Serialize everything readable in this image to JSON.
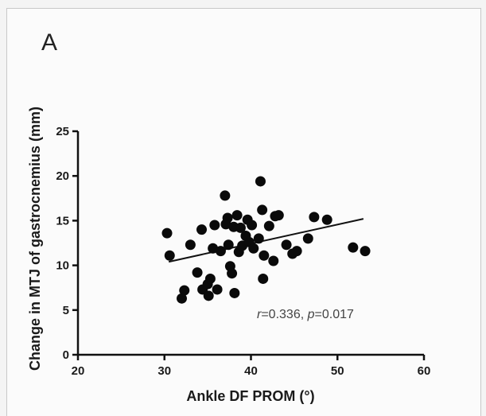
{
  "panel_label": "A",
  "chart_data": {
    "type": "scatter",
    "xlabel": "Ankle DF PROM (°)",
    "ylabel": "Change in MTJ of gastrocnemius (mm)",
    "xlim": [
      20,
      60
    ],
    "ylim": [
      0,
      25
    ],
    "xticks": [
      "20",
      "30",
      "40",
      "50",
      "60"
    ],
    "yticks": [
      "0",
      "5",
      "10",
      "15",
      "20",
      "25"
    ],
    "grid": false,
    "annotation": {
      "r_label": "r",
      "r_value": "=0.336, ",
      "p_label": "p",
      "p_value": "=0.017"
    },
    "regression_line": {
      "x": [
        30.5,
        53
      ],
      "y": [
        10.4,
        15.2
      ]
    },
    "points": [
      {
        "x": 30.3,
        "y": 13.6
      },
      {
        "x": 30.6,
        "y": 11.1
      },
      {
        "x": 32.0,
        "y": 6.3
      },
      {
        "x": 32.3,
        "y": 7.2
      },
      {
        "x": 33.0,
        "y": 12.3
      },
      {
        "x": 33.8,
        "y": 9.2
      },
      {
        "x": 34.3,
        "y": 14.0
      },
      {
        "x": 34.4,
        "y": 7.3
      },
      {
        "x": 35.0,
        "y": 7.9
      },
      {
        "x": 35.1,
        "y": 6.6
      },
      {
        "x": 35.3,
        "y": 8.5
      },
      {
        "x": 35.6,
        "y": 11.9
      },
      {
        "x": 35.8,
        "y": 14.5
      },
      {
        "x": 36.1,
        "y": 7.3
      },
      {
        "x": 36.5,
        "y": 11.6
      },
      {
        "x": 37.0,
        "y": 17.8
      },
      {
        "x": 37.1,
        "y": 14.6
      },
      {
        "x": 37.3,
        "y": 15.3
      },
      {
        "x": 37.4,
        "y": 12.3
      },
      {
        "x": 37.6,
        "y": 9.9
      },
      {
        "x": 37.8,
        "y": 9.1
      },
      {
        "x": 38.0,
        "y": 14.3
      },
      {
        "x": 38.1,
        "y": 6.9
      },
      {
        "x": 38.4,
        "y": 15.6
      },
      {
        "x": 38.6,
        "y": 11.5
      },
      {
        "x": 38.8,
        "y": 14.2
      },
      {
        "x": 39.0,
        "y": 12.2
      },
      {
        "x": 39.4,
        "y": 13.3
      },
      {
        "x": 39.6,
        "y": 15.1
      },
      {
        "x": 39.8,
        "y": 12.6
      },
      {
        "x": 40.1,
        "y": 14.5
      },
      {
        "x": 40.3,
        "y": 11.9
      },
      {
        "x": 40.9,
        "y": 13.0
      },
      {
        "x": 41.1,
        "y": 19.4
      },
      {
        "x": 41.3,
        "y": 16.2
      },
      {
        "x": 41.4,
        "y": 8.5
      },
      {
        "x": 41.5,
        "y": 11.1
      },
      {
        "x": 42.1,
        "y": 14.4
      },
      {
        "x": 42.6,
        "y": 10.5
      },
      {
        "x": 42.8,
        "y": 15.5
      },
      {
        "x": 43.2,
        "y": 15.6
      },
      {
        "x": 44.1,
        "y": 12.3
      },
      {
        "x": 44.8,
        "y": 11.3
      },
      {
        "x": 45.3,
        "y": 11.6
      },
      {
        "x": 46.6,
        "y": 13.0
      },
      {
        "x": 47.3,
        "y": 15.4
      },
      {
        "x": 48.8,
        "y": 15.1
      },
      {
        "x": 51.8,
        "y": 12.0
      },
      {
        "x": 53.2,
        "y": 11.6
      }
    ]
  }
}
